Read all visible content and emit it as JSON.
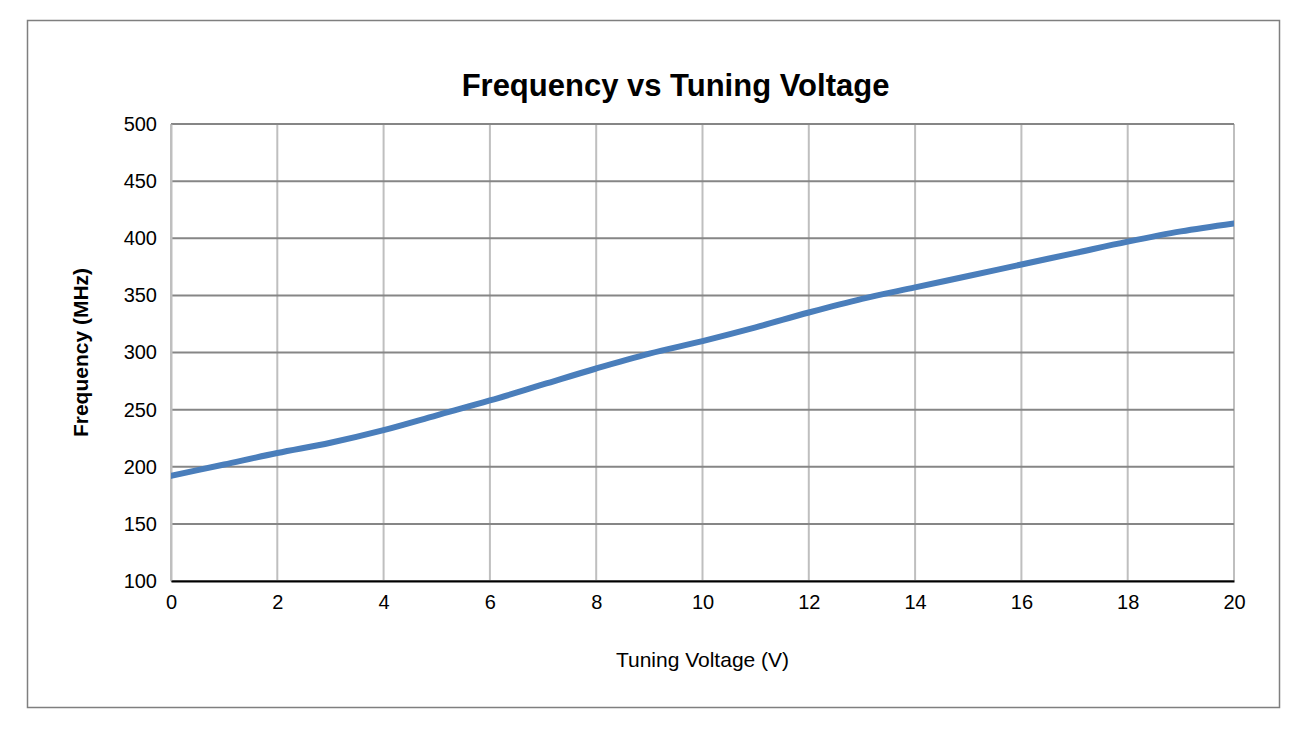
{
  "chart_data": {
    "type": "line",
    "title": "Frequency vs Tuning Voltage",
    "x_label": "Tuning Voltage (V)",
    "y_label": "Frequency (MHz)",
    "x": [
      0,
      1,
      2,
      3,
      4,
      5,
      6,
      7,
      8,
      9,
      10,
      11,
      12,
      13,
      14,
      15,
      16,
      17,
      18,
      19,
      20
    ],
    "values": [
      192,
      202,
      212,
      221,
      232,
      245,
      258,
      272,
      286,
      299,
      310,
      322,
      335,
      347,
      357,
      367,
      377,
      387,
      397,
      406,
      413
    ],
    "color": "#4a7ebb",
    "xlim": [
      0,
      20
    ],
    "ylim": [
      100,
      500
    ],
    "xticks": [
      0,
      2,
      4,
      6,
      8,
      10,
      12,
      14,
      16,
      18,
      20
    ],
    "yticks": [
      100,
      150,
      200,
      250,
      300,
      350,
      400,
      450,
      500
    ],
    "grid": true
  }
}
